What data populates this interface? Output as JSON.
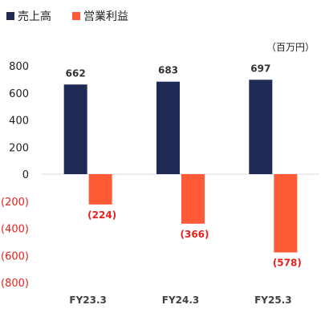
{
  "chart_data": {
    "type": "bar",
    "unit_label": "（百万円）",
    "categories": [
      "FY23.3",
      "FY24.3",
      "FY25.3"
    ],
    "series": [
      {
        "name": "売上高",
        "color": "#1f2a56",
        "values": [
          662,
          683,
          697
        ],
        "data_labels": [
          "662",
          "683",
          "697"
        ],
        "label_color": "#333333"
      },
      {
        "name": "営業利益",
        "color": "#ff5a36",
        "values": [
          -224,
          -366,
          -578
        ],
        "data_labels": [
          "(224)",
          "(366)",
          "(578)"
        ],
        "label_color": "#e8201c"
      }
    ],
    "y_ticks": [
      {
        "value": 800,
        "label": "800"
      },
      {
        "value": 600,
        "label": "600"
      },
      {
        "value": 400,
        "label": "400"
      },
      {
        "value": 200,
        "label": "200"
      },
      {
        "value": 0,
        "label": "0"
      },
      {
        "value": -200,
        "label": "(200)"
      },
      {
        "value": -400,
        "label": "(400)"
      },
      {
        "value": -600,
        "label": "(600)"
      },
      {
        "value": -800,
        "label": "(800)"
      }
    ],
    "positive_tick_color": "#222222",
    "negative_tick_color": "#e8201c",
    "ylim": [
      -800,
      800
    ],
    "grid": false,
    "legend_position": "top-left"
  }
}
